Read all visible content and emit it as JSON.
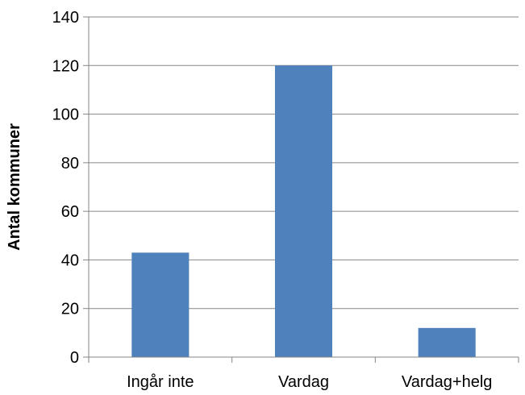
{
  "chart_data": {
    "type": "bar",
    "title": "",
    "xlabel": "",
    "ylabel": "Antal kommuner",
    "categories": [
      "Ingår inte",
      "Vardag",
      "Vardag+helg"
    ],
    "values": [
      43,
      120,
      12
    ],
    "ylim": [
      0,
      140
    ],
    "yticks": [
      0,
      20,
      40,
      60,
      80,
      100,
      120,
      140
    ],
    "grid": true,
    "legend": "none",
    "colors": {
      "bar": "#4F81BD",
      "grid": "#868686",
      "axis": "#868686"
    }
  }
}
